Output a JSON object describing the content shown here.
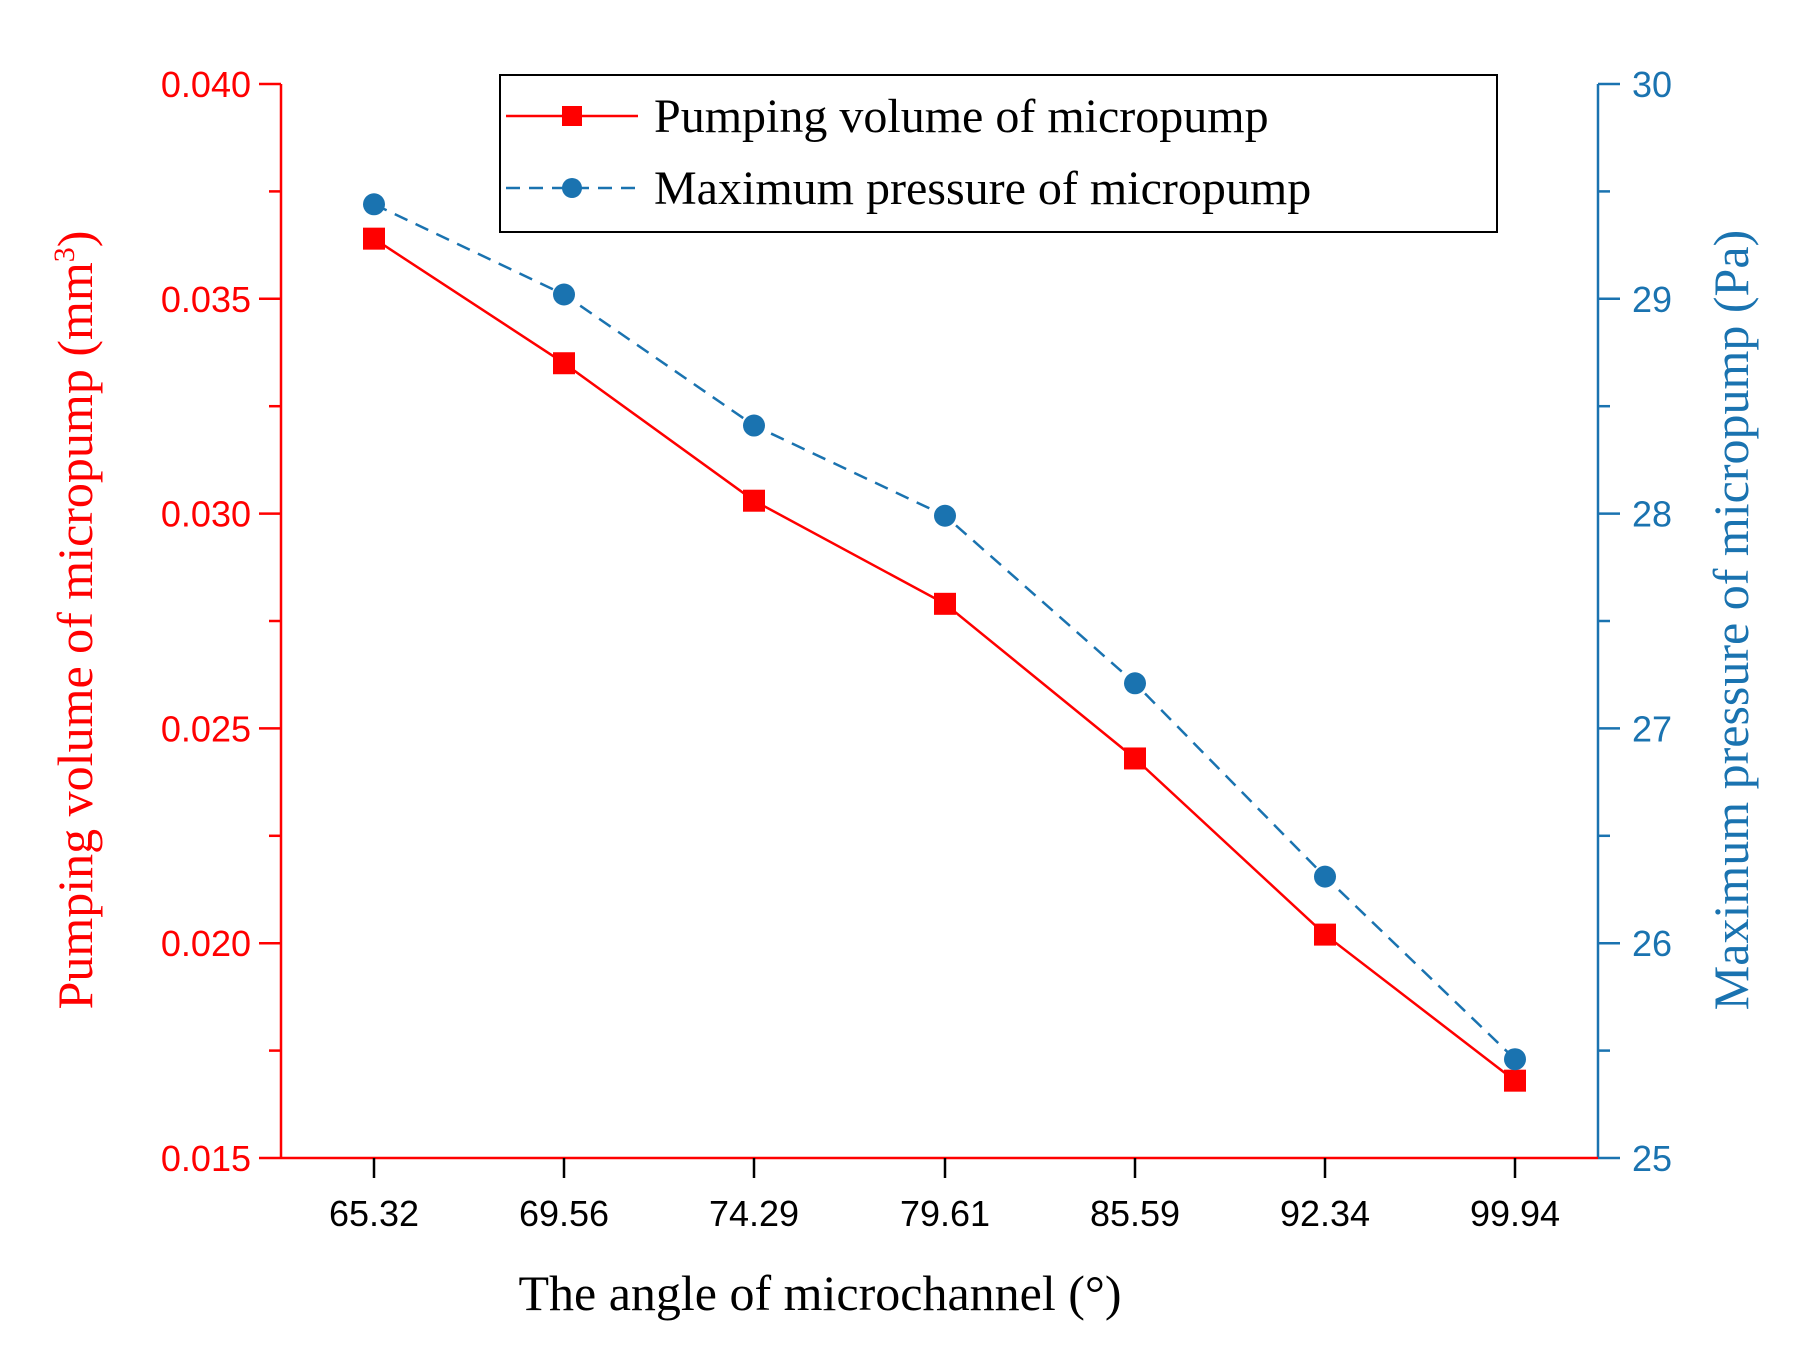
{
  "chart_data": {
    "type": "line",
    "title": "",
    "xlabel": "The angle of microchannel (°)",
    "categories": [
      "65.32",
      "69.56",
      "74.29",
      "79.61",
      "85.59",
      "92.34",
      "99.94"
    ],
    "y_left": {
      "label_main": "Pumping volume of micropump (mm",
      "label_sup": "3",
      "label_end": ")",
      "range": [
        0.015,
        0.04
      ],
      "ticks": [
        "0.015",
        "0.020",
        "0.025",
        "0.030",
        "0.035",
        "0.040"
      ],
      "color": "#ff0000"
    },
    "y_right": {
      "label": "Maximum pressure of micropump (Pa)",
      "range": [
        25,
        30
      ],
      "ticks": [
        "25",
        "26",
        "27",
        "28",
        "29",
        "30"
      ],
      "color": "#1a73b0"
    },
    "series": [
      {
        "name": "Pumping volume of micropump",
        "axis": "left",
        "marker": "square",
        "line_style": "solid",
        "color": "#ff0000",
        "values": [
          0.0364,
          0.0335,
          0.0303,
          0.0279,
          0.0243,
          0.0202,
          0.0168
        ]
      },
      {
        "name": "Maximum pressure of micropump",
        "axis": "right",
        "marker": "circle",
        "line_style": "dashed",
        "color": "#1a73b0",
        "values": [
          29.44,
          29.02,
          28.41,
          27.99,
          27.21,
          26.31,
          25.46
        ]
      }
    ],
    "legend_position": "top-right",
    "grid": false
  }
}
